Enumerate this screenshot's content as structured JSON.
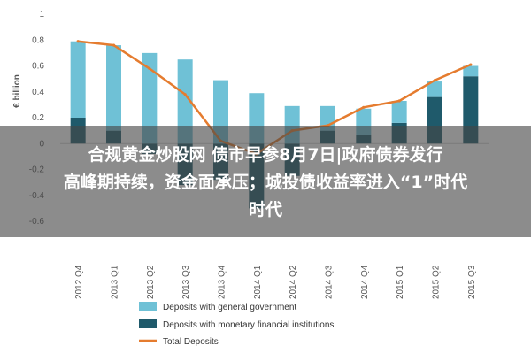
{
  "chart_data": {
    "type": "bar",
    "categories": [
      "2012 Q4",
      "2013 Q1",
      "2013 Q2",
      "2013 Q3",
      "2013 Q4",
      "2014 Q1",
      "2014 Q2",
      "2014 Q3",
      "2014 Q4",
      "2015 Q1",
      "2015 Q2",
      "2015 Q3"
    ],
    "series": [
      {
        "name": "Deposits with general government",
        "type": "bar",
        "color": "#6fc1d6",
        "values": [
          0.79,
          0.76,
          0.7,
          0.65,
          0.49,
          0.39,
          0.29,
          0.29,
          0.27,
          0.33,
          0.48,
          0.6
        ]
      },
      {
        "name": "Deposits with monetary financial institutions",
        "type": "bar",
        "color": "#1f5a6b",
        "values": [
          0.2,
          0.1,
          -0.08,
          -0.32,
          -0.28,
          -0.5,
          -0.25,
          0.1,
          0.07,
          0.16,
          0.36,
          0.52
        ]
      },
      {
        "name": "Total Deposits",
        "type": "line",
        "color": "#e57c2f",
        "values": [
          0.79,
          0.76,
          0.58,
          0.38,
          0.02,
          -0.08,
          0.1,
          0.14,
          0.28,
          0.33,
          0.49,
          0.61
        ]
      }
    ],
    "ylabel": "€ billion",
    "yticks": [
      "1",
      "0.8",
      "0.6",
      "0.4",
      "0.2",
      "0",
      "-0.2",
      "-0.4",
      "-0.6"
    ],
    "ylim": [
      -0.6,
      1.0
    ],
    "legend_position": "bottom-left",
    "grid": false
  },
  "overlay": {
    "headline_lines": [
      "合规黄金炒股网 债市早参8月7日|政府债券发行",
      "高峰期持续，资金面承压；城投债收益率进入“1”时代",
      "时代"
    ]
  }
}
